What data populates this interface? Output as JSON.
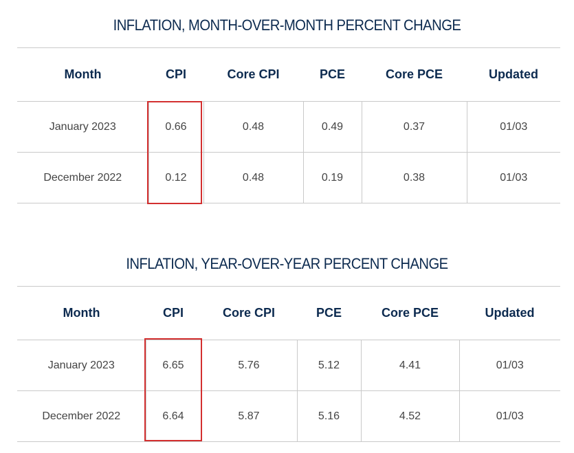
{
  "mom": {
    "title": "INFLATION, MONTH-OVER-MONTH PERCENT CHANGE",
    "headers": [
      "Month",
      "CPI",
      "Core CPI",
      "PCE",
      "Core PCE",
      "Updated"
    ],
    "rows": [
      [
        "January 2023",
        "0.66",
        "0.48",
        "0.49",
        "0.37",
        "01/03"
      ],
      [
        "December 2022",
        "0.12",
        "0.48",
        "0.19",
        "0.38",
        "01/03"
      ]
    ]
  },
  "yoy": {
    "title": "INFLATION, YEAR-OVER-YEAR PERCENT CHANGE",
    "headers": [
      "Month",
      "CPI",
      "Core CPI",
      "PCE",
      "Core PCE",
      "Updated"
    ],
    "rows": [
      [
        "January 2023",
        "6.65",
        "5.76",
        "5.12",
        "4.41",
        "01/03"
      ],
      [
        "December 2022",
        "6.64",
        "5.87",
        "5.16",
        "4.52",
        "01/03"
      ]
    ]
  },
  "colors": {
    "heading": "#0c2a4f",
    "cell_text": "#444444",
    "border": "#c9c9c9",
    "highlight": "#d32f2f"
  }
}
